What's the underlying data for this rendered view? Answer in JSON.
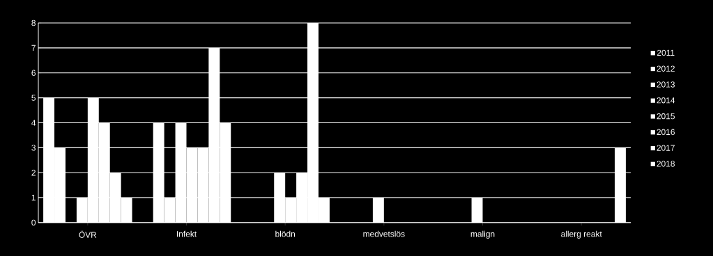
{
  "chart_data": {
    "type": "bar",
    "categories": [
      "ÖVR",
      "Infekt",
      "blödn",
      "medvetslös",
      "malign",
      "allerg reakt"
    ],
    "series": [
      {
        "name": "2011",
        "color": "#ffffff",
        "values": [
          5,
          0,
          0,
          0,
          0,
          0
        ]
      },
      {
        "name": "2012",
        "color": "#ffffff",
        "values": [
          3,
          4,
          0,
          0,
          0,
          0
        ]
      },
      {
        "name": "2013",
        "color": "#ffffff",
        "values": [
          0,
          1,
          0,
          0,
          0,
          0
        ]
      },
      {
        "name": "2014",
        "color": "#ffffff",
        "values": [
          1,
          4,
          2,
          1,
          1,
          0
        ]
      },
      {
        "name": "2015",
        "color": "#ffffff",
        "values": [
          5,
          3,
          1,
          0,
          0,
          0
        ]
      },
      {
        "name": "2016",
        "color": "#ffffff",
        "values": [
          4,
          3,
          2,
          0,
          0,
          0
        ]
      },
      {
        "name": "2017",
        "color": "#ffffff",
        "values": [
          2,
          7,
          8,
          0,
          0,
          0
        ]
      },
      {
        "name": "2018",
        "color": "#ffffff",
        "values": [
          1,
          4,
          1,
          0,
          0,
          3
        ]
      }
    ],
    "ylim": [
      0,
      8
    ],
    "yticks": [
      0,
      1,
      2,
      3,
      4,
      5,
      6,
      7,
      8
    ],
    "grid": "y",
    "legend": "right"
  }
}
